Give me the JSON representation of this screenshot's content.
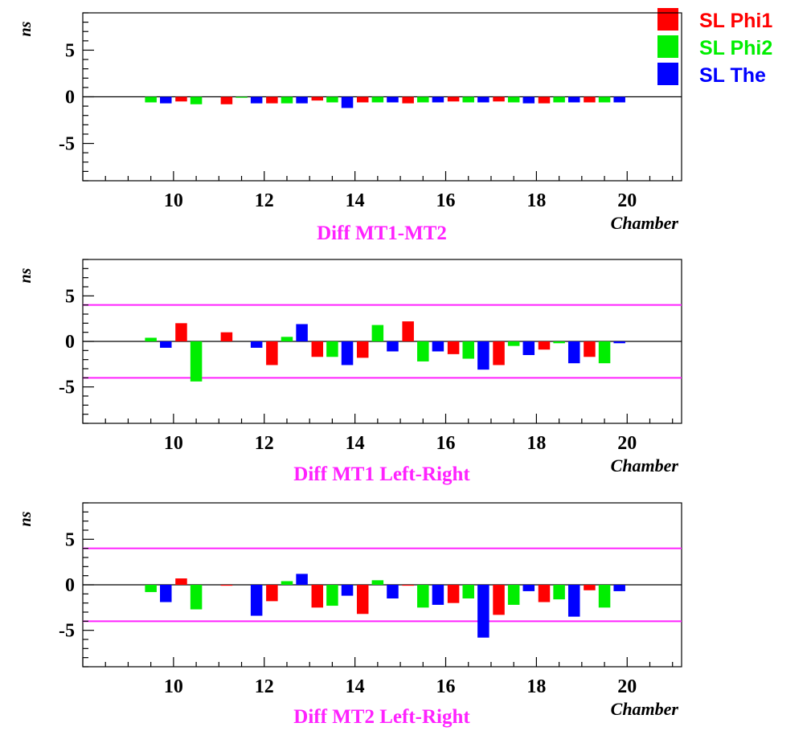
{
  "legend": [
    {
      "label": "SL Phi1",
      "color": "#ff0000"
    },
    {
      "label": "SL Phi2",
      "color": "#00ee00"
    },
    {
      "label": "SL The",
      "color": "#0000ff"
    }
  ],
  "colors": {
    "limit_line": "#ff22ff",
    "title": "#ff22ff",
    "frame": "#000000"
  },
  "chart_data": [
    {
      "type": "bar",
      "title": "Diff MT1-MT2",
      "xlabel": "Chamber",
      "ylabel": "ns",
      "xlim": [
        8,
        21.2
      ],
      "ylim": [
        -9,
        9
      ],
      "x_ticks": [
        10,
        12,
        14,
        16,
        18,
        20
      ],
      "y_ticks": [
        -5,
        0,
        5
      ],
      "grid": false,
      "limit_lines": [],
      "x": [
        9.5,
        10.5,
        11.5,
        12.5,
        13.5,
        14.5,
        15.5,
        16.5,
        17.5,
        18.5,
        19.5
      ],
      "series": [
        {
          "name": "SL Phi1",
          "values": [
            0,
            -0.5,
            -0.8,
            -0.7,
            -0.4,
            -0.6,
            -0.7,
            -0.5,
            -0.5,
            -0.7,
            -0.6
          ]
        },
        {
          "name": "SL Phi2",
          "values": [
            -0.6,
            -0.8,
            -0.1,
            -0.7,
            -0.6,
            -0.6,
            -0.6,
            -0.6,
            -0.6,
            -0.6,
            -0.6
          ]
        },
        {
          "name": "SL The",
          "values": [
            -0.7,
            0,
            -0.7,
            -0.7,
            -1.2,
            -0.6,
            -0.6,
            -0.6,
            -0.7,
            -0.6,
            -0.6
          ]
        }
      ]
    },
    {
      "type": "bar",
      "title": "Diff MT1 Left-Right",
      "xlabel": "Chamber",
      "ylabel": "ns",
      "xlim": [
        8,
        21.2
      ],
      "ylim": [
        -9,
        9
      ],
      "x_ticks": [
        10,
        12,
        14,
        16,
        18,
        20
      ],
      "y_ticks": [
        -5,
        0,
        5
      ],
      "grid": false,
      "limit_lines": [
        4,
        -4
      ],
      "x": [
        9.5,
        10.5,
        11.5,
        12.5,
        13.5,
        14.5,
        15.5,
        16.5,
        17.5,
        18.5,
        19.5
      ],
      "series": [
        {
          "name": "SL Phi1",
          "values": [
            0,
            2.0,
            1.0,
            -2.6,
            -1.7,
            -1.8,
            2.2,
            -1.4,
            -2.6,
            -0.9,
            -1.7
          ]
        },
        {
          "name": "SL Phi2",
          "values": [
            0.4,
            -4.4,
            0,
            0.5,
            -1.7,
            1.8,
            -2.2,
            -1.9,
            -0.5,
            -0.2,
            -2.4
          ]
        },
        {
          "name": "SL The",
          "values": [
            -0.7,
            0,
            -0.7,
            1.9,
            -2.6,
            -1.1,
            -1.1,
            -3.1,
            -1.5,
            -2.4,
            -0.2
          ]
        }
      ]
    },
    {
      "type": "bar",
      "title": "Diff MT2 Left-Right",
      "xlabel": "Chamber",
      "ylabel": "ns",
      "xlim": [
        8,
        21.2
      ],
      "ylim": [
        -9,
        9
      ],
      "x_ticks": [
        10,
        12,
        14,
        16,
        18,
        20
      ],
      "y_ticks": [
        -5,
        0,
        5
      ],
      "grid": false,
      "limit_lines": [
        4,
        -4
      ],
      "x": [
        9.5,
        10.5,
        11.5,
        12.5,
        13.5,
        14.5,
        15.5,
        16.5,
        17.5,
        18.5,
        19.5
      ],
      "series": [
        {
          "name": "SL Phi1",
          "values": [
            0,
            0.7,
            -0.1,
            -1.8,
            -2.5,
            -3.2,
            -0.1,
            -2.0,
            -3.3,
            -1.9,
            -0.6
          ]
        },
        {
          "name": "SL Phi2",
          "values": [
            -0.8,
            -2.7,
            0,
            0.4,
            -2.3,
            0.5,
            -2.5,
            -1.5,
            -2.2,
            -1.6,
            -2.5
          ]
        },
        {
          "name": "SL The",
          "values": [
            -1.9,
            0,
            -3.4,
            1.2,
            -1.2,
            -1.5,
            -2.2,
            -5.8,
            -0.7,
            -3.5,
            -0.7
          ]
        }
      ]
    }
  ]
}
